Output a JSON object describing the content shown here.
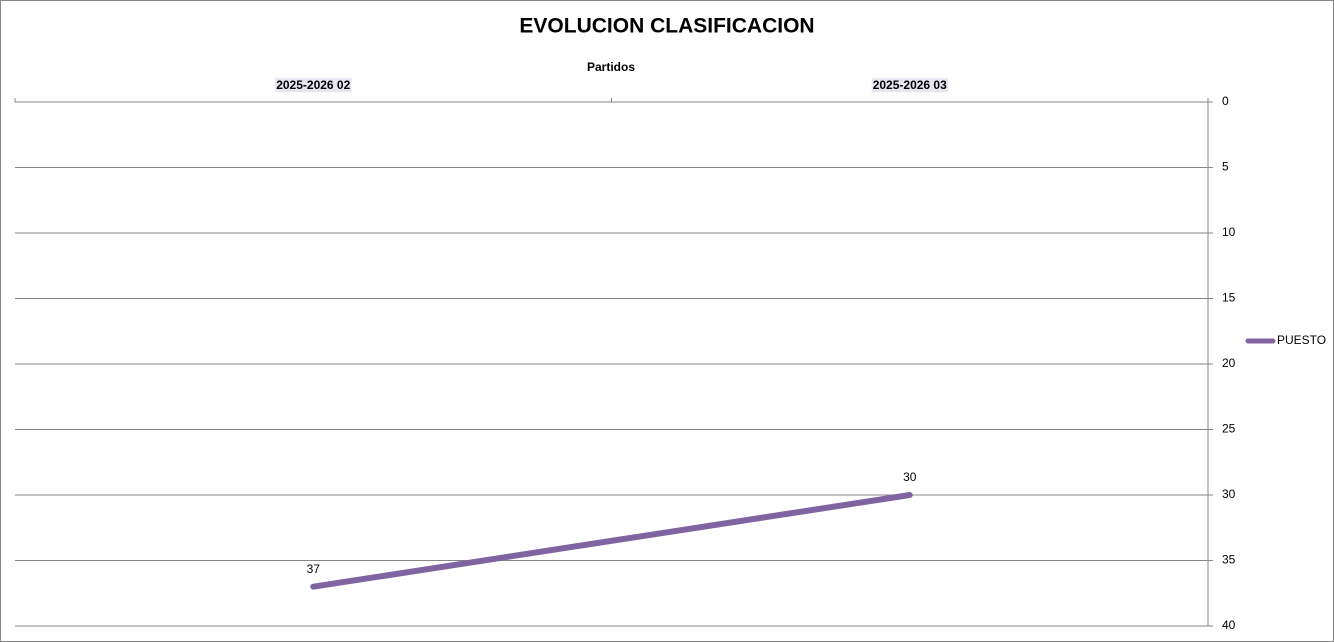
{
  "chart_data": {
    "type": "line",
    "title": "EVOLUCION CLASIFICACION",
    "x_label": "Partidos",
    "categories": [
      "2025-2026 02",
      "2025-2026 03"
    ],
    "series": [
      {
        "name": "PUESTO",
        "color": "#8064a2",
        "values": [
          37,
          30
        ]
      }
    ],
    "ylim": [
      0,
      40
    ],
    "yticks": [
      0,
      5,
      10,
      15,
      20,
      25,
      30,
      35,
      40
    ],
    "y_reversed": true,
    "y_axis_side": "right",
    "x_axis_side": "top",
    "grid": true,
    "legend": "right",
    "data_labels": true
  }
}
